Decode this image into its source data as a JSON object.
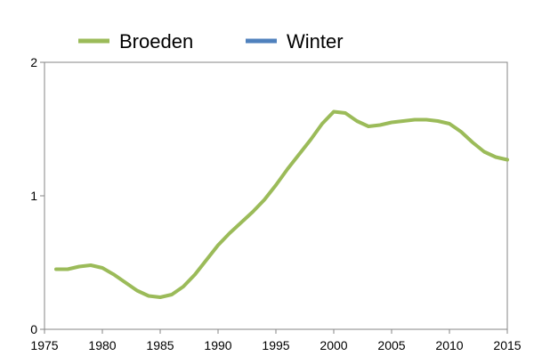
{
  "chart_data": {
    "type": "line",
    "title": "",
    "xlabel": "",
    "ylabel": "",
    "xlim": [
      1975,
      2015
    ],
    "ylim": [
      0,
      2
    ],
    "x_ticks": [
      1975,
      1980,
      1985,
      1990,
      1995,
      2000,
      2005,
      2010,
      2015
    ],
    "y_ticks": [
      0,
      1,
      2
    ],
    "x_tick_labels": [
      "1975",
      "1980",
      "1985",
      "1990",
      "1995",
      "2000",
      "2005",
      "2010",
      "2015"
    ],
    "y_tick_labels": [
      "0",
      "1",
      "2"
    ],
    "grid": false,
    "legend_position": "top",
    "series": [
      {
        "name": "Broeden",
        "color": "#9bbb59",
        "x": [
          1976,
          1977,
          1978,
          1979,
          1980,
          1981,
          1982,
          1983,
          1984,
          1985,
          1986,
          1987,
          1988,
          1989,
          1990,
          1991,
          1992,
          1993,
          1994,
          1995,
          1996,
          1997,
          1998,
          1999,
          2000,
          2001,
          2002,
          2003,
          2004,
          2005,
          2006,
          2007,
          2008,
          2009,
          2010,
          2011,
          2012,
          2013,
          2014,
          2015
        ],
        "values": [
          0.45,
          0.45,
          0.47,
          0.48,
          0.46,
          0.41,
          0.35,
          0.29,
          0.25,
          0.24,
          0.26,
          0.32,
          0.41,
          0.52,
          0.63,
          0.72,
          0.8,
          0.88,
          0.97,
          1.08,
          1.2,
          1.31,
          1.42,
          1.54,
          1.63,
          1.62,
          1.56,
          1.52,
          1.53,
          1.55,
          1.56,
          1.57,
          1.57,
          1.56,
          1.54,
          1.48,
          1.4,
          1.33,
          1.29,
          1.27
        ]
      },
      {
        "name": "Winter",
        "color": "#4f81bd",
        "x": [],
        "values": []
      }
    ]
  }
}
